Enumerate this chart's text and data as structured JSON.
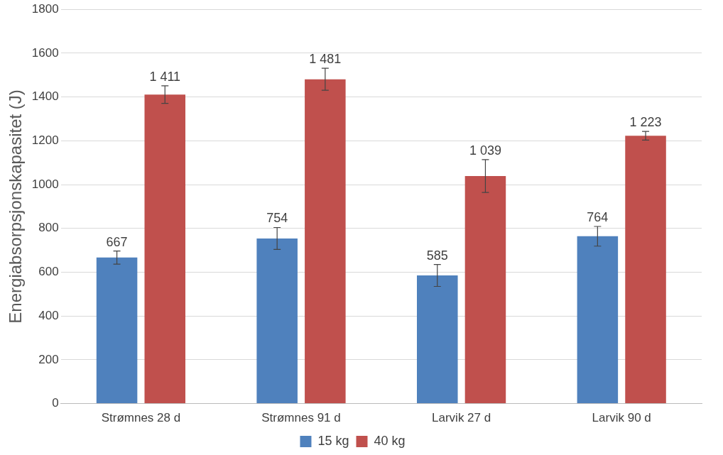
{
  "chart_data": {
    "type": "bar",
    "ylabel": "Energiabsorpsjonskapasitet (J)",
    "categories": [
      "Strømnes 28 d",
      "Strømnes 91 d",
      "Larvik 27 d",
      "Larvik 90 d"
    ],
    "series": [
      {
        "name": "15 kg",
        "color": "#4f81bd",
        "values": [
          667,
          754,
          585,
          764
        ],
        "errors": [
          30,
          50,
          50,
          45
        ],
        "value_labels": [
          "667",
          "754",
          "585",
          "764"
        ]
      },
      {
        "name": "40 kg",
        "color": "#c0504d",
        "values": [
          1411,
          1481,
          1039,
          1223
        ],
        "errors": [
          40,
          50,
          75,
          20
        ],
        "value_labels": [
          "1 411",
          "1 481",
          "1 039",
          "1 223"
        ]
      }
    ],
    "ylim": [
      0,
      1800
    ],
    "yticks": [
      0,
      200,
      400,
      600,
      800,
      1000,
      1200,
      1400,
      1600,
      1800
    ],
    "grid": "y",
    "legend": "bottom"
  }
}
